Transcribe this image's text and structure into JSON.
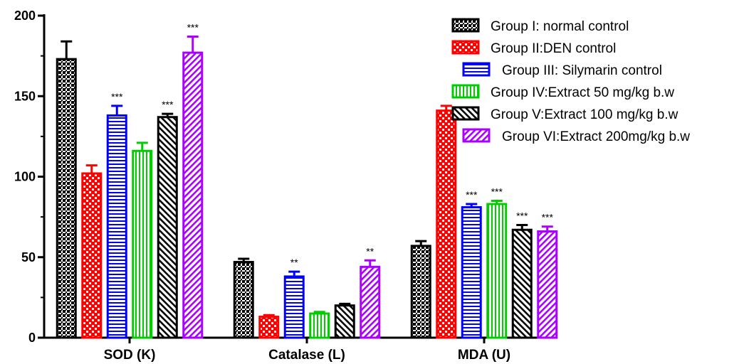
{
  "chart_data": {
    "type": "bar",
    "title": "",
    "xlabel": "",
    "ylabel": "",
    "ylim": [
      0,
      200
    ],
    "yticks": [
      0,
      50,
      100,
      150,
      200
    ],
    "grid": false,
    "legend_position": "top-right",
    "categories": [
      "SOD (K)",
      "Catalase (L)",
      "MDA (U)"
    ],
    "series": [
      {
        "name": "Group I: normal control",
        "color": "#000000",
        "pattern": "checker",
        "values": [
          173,
          47,
          57
        ],
        "errors": [
          11,
          2,
          3
        ],
        "annotations": [
          "",
          "",
          ""
        ]
      },
      {
        "name": "Group II:DEN control",
        "color": "#ff0000",
        "pattern": "checker-white",
        "values": [
          102,
          13,
          141
        ],
        "errors": [
          5,
          1,
          3
        ],
        "annotations": [
          "",
          "",
          ""
        ]
      },
      {
        "name": "Group III: Silymarin control",
        "color": "#0000ff",
        "pattern": "hlines",
        "values": [
          138,
          38,
          81
        ],
        "errors": [
          6,
          3,
          2
        ],
        "annotations": [
          "***",
          "**",
          "***"
        ]
      },
      {
        "name": "Group IV:Extract 50 mg/kg b.w",
        "color": "#00cc00",
        "pattern": "vlines",
        "values": [
          116,
          15,
          83
        ],
        "errors": [
          5,
          1,
          2
        ],
        "annotations": [
          "",
          "",
          "***"
        ]
      },
      {
        "name": "Group V:Extract 100 mg/kg b.w",
        "color": "#000000",
        "pattern": "diag-fwd",
        "values": [
          137,
          20,
          67
        ],
        "errors": [
          2,
          1,
          3
        ],
        "annotations": [
          "***",
          "",
          "***"
        ]
      },
      {
        "name": "Group VI:Extract 200mg/kg b.w",
        "color": "#aa00ff",
        "pattern": "diag-back",
        "values": [
          177,
          44,
          66
        ],
        "errors": [
          10,
          4,
          3
        ],
        "annotations": [
          "***",
          "**",
          "***"
        ]
      }
    ]
  }
}
